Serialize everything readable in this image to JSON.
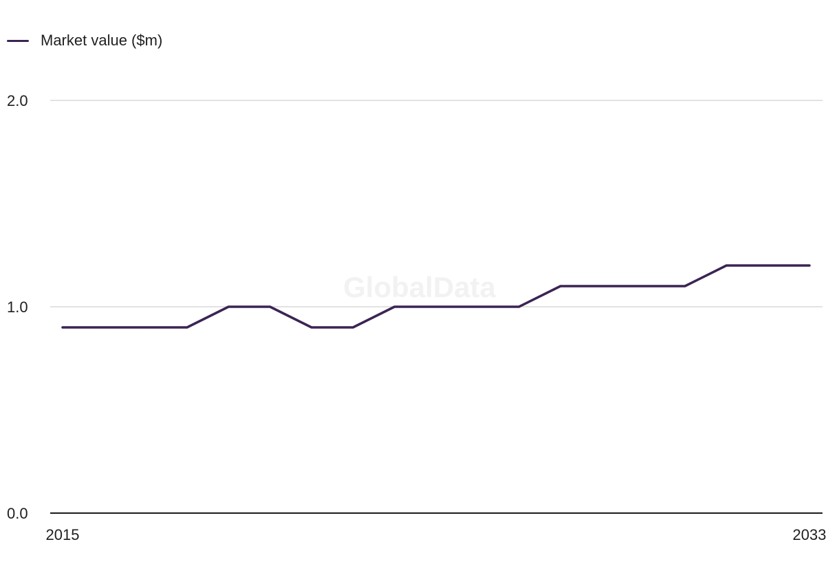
{
  "chart_data": {
    "type": "line",
    "x": [
      2015,
      2016,
      2017,
      2018,
      2019,
      2020,
      2021,
      2022,
      2023,
      2024,
      2025,
      2026,
      2027,
      2028,
      2029,
      2030,
      2031,
      2032,
      2033
    ],
    "series": [
      {
        "name": "Market value ($m)",
        "values": [
          0.9,
          0.9,
          0.9,
          0.9,
          1.0,
          1.0,
          0.9,
          0.9,
          1.0,
          1.0,
          1.0,
          1.0,
          1.1,
          1.1,
          1.1,
          1.1,
          1.2,
          1.2,
          1.2
        ],
        "color": "#3b2453"
      }
    ],
    "ylim": [
      0,
      2
    ],
    "y_ticks": [
      "0.0",
      "1.0",
      "2.0"
    ],
    "x_tick_labels": [
      "2015",
      "2033"
    ],
    "grid": true,
    "legend_position": "top-left",
    "watermark": "GlobalData"
  }
}
